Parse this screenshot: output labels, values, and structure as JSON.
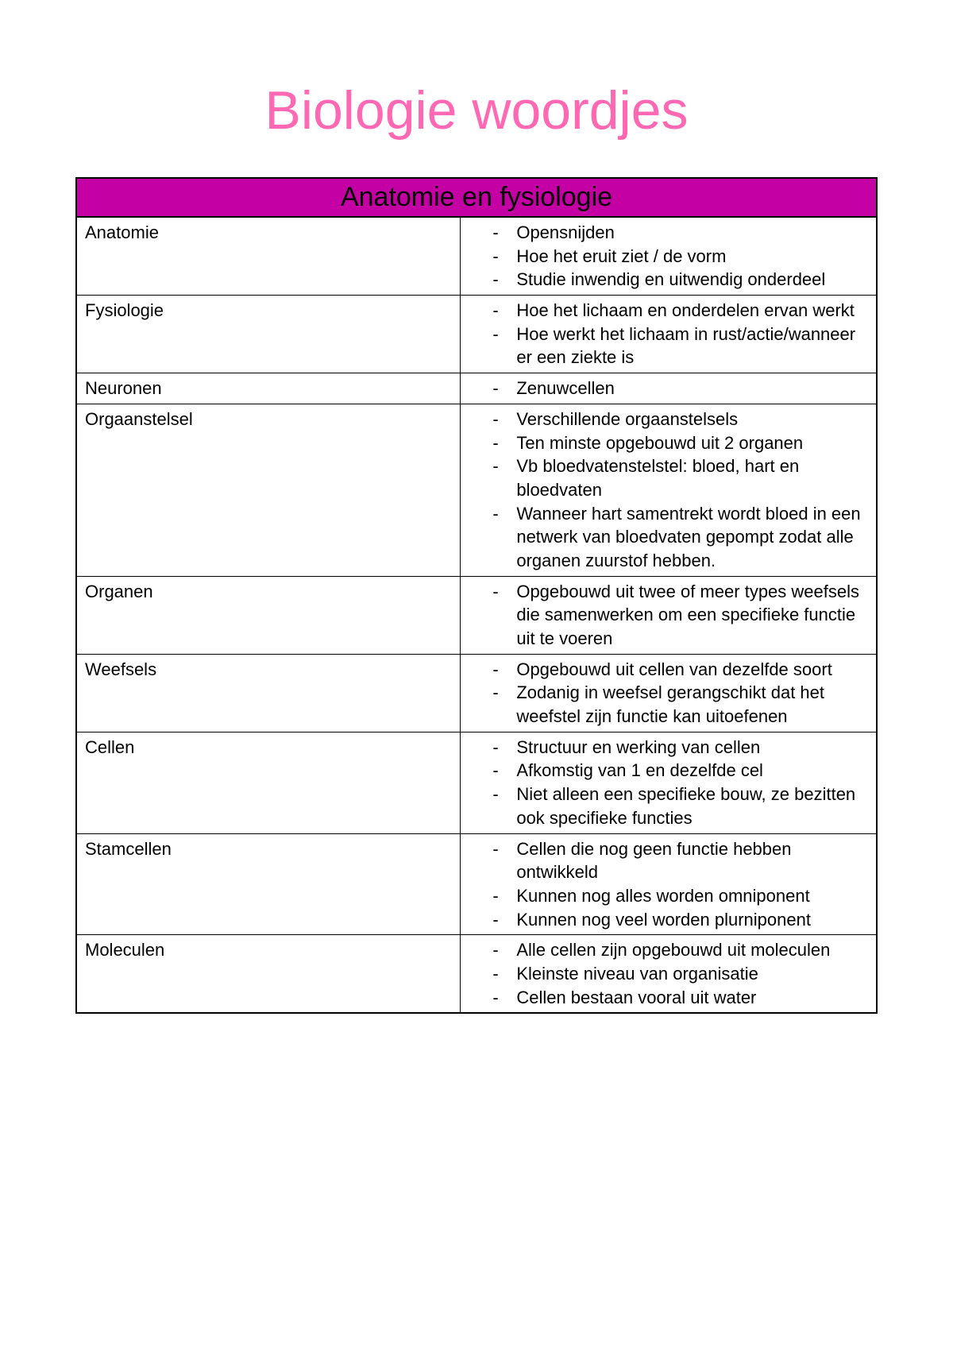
{
  "page": {
    "title": "Biologie woordjes",
    "title_color": "#ff69b4"
  },
  "table": {
    "section_header": "Anatomie en fysiologie",
    "section_bg": "#c400a4",
    "section_text_color": "#000000",
    "border_color": "#000000",
    "text_color": "#000000",
    "rows": [
      {
        "term": "Anatomie",
        "definitions": [
          "Opensnijden",
          "Hoe het eruit ziet / de vorm",
          "Studie inwendig en uitwendig onderdeel"
        ]
      },
      {
        "term": "Fysiologie",
        "definitions": [
          "Hoe het lichaam en onderdelen ervan werkt",
          "Hoe werkt het lichaam in rust/actie/wanneer er een ziekte is"
        ]
      },
      {
        "term": "Neuronen",
        "definitions": [
          "Zenuwcellen"
        ]
      },
      {
        "term": "Orgaanstelsel",
        "definitions": [
          "Verschillende orgaanstelsels",
          "Ten minste opgebouwd uit 2 organen",
          "Vb bloedvatenstelstel: bloed, hart en bloedvaten",
          "Wanneer hart samentrekt wordt bloed in een netwerk van bloedvaten gepompt zodat alle organen zuurstof hebben."
        ]
      },
      {
        "term": "Organen",
        "definitions": [
          "Opgebouwd uit twee of meer types weefsels die samenwerken om een specifieke functie uit te voeren"
        ]
      },
      {
        "term": "Weefsels",
        "definitions": [
          "Opgebouwd uit cellen van dezelfde soort",
          "Zodanig in weefsel gerangschikt dat het weefstel zijn functie kan uitoefenen"
        ]
      },
      {
        "term": "Cellen",
        "definitions": [
          "Structuur en werking van cellen",
          "Afkomstig van 1 en dezelfde cel",
          "Niet alleen een specifieke bouw, ze bezitten ook specifieke functies"
        ]
      },
      {
        "term": "Stamcellen",
        "definitions": [
          "Cellen die nog geen functie hebben ontwikkeld",
          "Kunnen nog alles worden omniponent",
          "Kunnen nog veel worden plurniponent"
        ]
      },
      {
        "term": "Moleculen",
        "definitions": [
          "Alle cellen zijn opgebouwd uit moleculen",
          "Kleinste niveau van organisatie",
          "Cellen bestaan vooral uit water"
        ]
      }
    ]
  }
}
